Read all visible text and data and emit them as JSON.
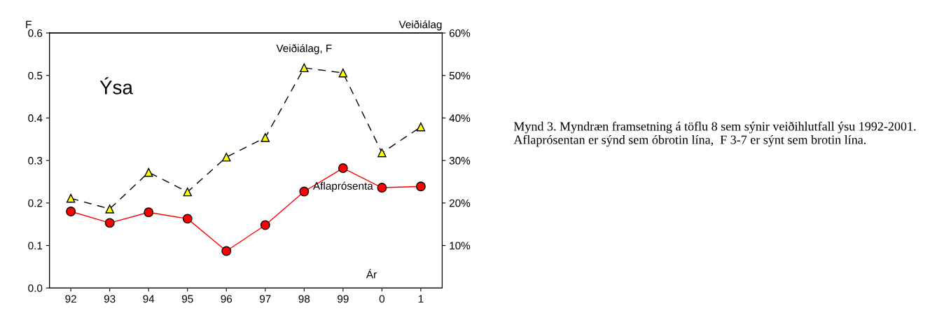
{
  "chart_data": {
    "type": "line",
    "ylabel": "F",
    "y2label": "Veiðiálag",
    "xlabel": "Ár",
    "categories": [
      "92",
      "93",
      "94",
      "95",
      "96",
      "97",
      "98",
      "99",
      "0",
      "1"
    ],
    "series": [
      {
        "name": "Veiðiálag, F",
        "color": "#ffff00",
        "marker": "triangle",
        "line_style": "dashed",
        "values": [
          0.211,
          0.186,
          0.272,
          0.226,
          0.308,
          0.354,
          0.518,
          0.506,
          0.318,
          0.379
        ]
      },
      {
        "name": "Aflaprósenta",
        "color": "#ff0000",
        "marker": "circle",
        "line_style": "solid",
        "axis": "y2",
        "values": [
          18.0,
          15.3,
          17.8,
          16.3,
          8.7,
          14.8,
          22.7,
          28.2,
          23.6,
          23.9
        ]
      }
    ],
    "ylim": [
      0,
      0.6
    ],
    "yticks": [
      {
        "value": 0,
        "label": "0.0"
      },
      0.1,
      0.2,
      0.3,
      0.4,
      0.5,
      0.6
    ],
    "y2lim": [
      0,
      60
    ],
    "y2ticks": [
      {
        "value": 10,
        "label": "10%"
      },
      {
        "value": 20,
        "label": "20%"
      },
      {
        "value": 30,
        "label": "30%"
      },
      {
        "value": 40,
        "label": "40%"
      },
      {
        "value": 50,
        "label": "50%"
      },
      {
        "value": 60,
        "label": "60%"
      }
    ],
    "grid": false,
    "legend": false,
    "annotations": [
      "Ýsa",
      "Mynd 3. Myndræn framsetning á töflu 8 sem sýnir veiðihlutfall ýsu 1992-2001. Aflaprósentan er sýnd sem óbrotin lína,  F 3-7 er sýnt sem brotin lína."
    ]
  }
}
